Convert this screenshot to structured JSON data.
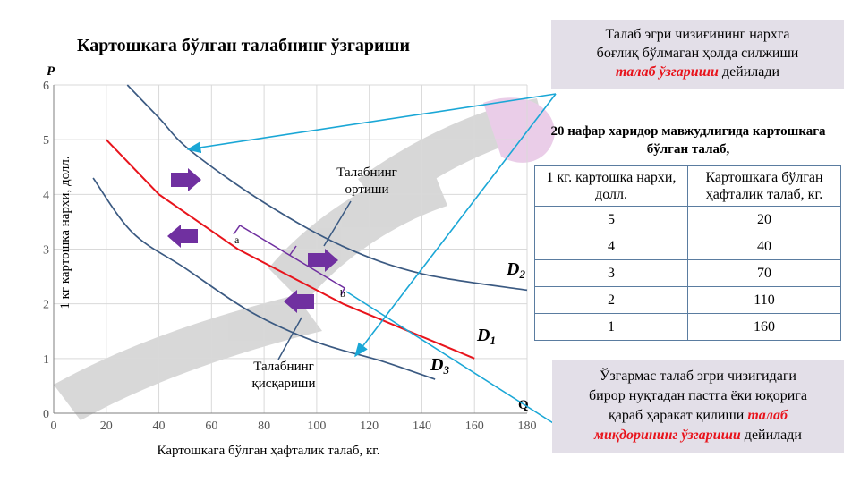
{
  "title": "Картошкага бўлган талабнинг ўзгариши",
  "box_top": {
    "line1": "Талаб эгри чизиғининг нархга",
    "line2": "боғлиқ бўлмаган ҳолда силжиши",
    "highlight": "талаб ўзгариши",
    "tail": " дейилади"
  },
  "box_bottom": {
    "line1": "Ўзгармас талаб эгри чизиғидаги",
    "line2": "бирор нуқтадан пастга ёки юқорига",
    "line3_plain": "қараб ҳаракат қилиши ",
    "line3_highlight": "талаб",
    "highlight2": "миқдорининг ўзгариши",
    "tail": " дейилади"
  },
  "table": {
    "title": "20 нафар харидор мавжудлигида картошкага бўлган талаб,",
    "headers": [
      "1 кг. картошка нархи, долл.",
      "Картошкага бўлган ҳафталик талаб, кг."
    ],
    "rows": [
      [
        "5",
        "20"
      ],
      [
        "4",
        "40"
      ],
      [
        "3",
        "70"
      ],
      [
        "2",
        "110"
      ],
      [
        "1",
        "160"
      ]
    ]
  },
  "chart_data": {
    "type": "line",
    "xlabel": "Картошкага бўлган ҳафталик талаб, кг.",
    "ylabel": "1 кг картошка нархи, долл.",
    "x_axis_letter": "Q",
    "y_axis_letter": "P",
    "xlim": [
      0,
      180
    ],
    "ylim": [
      0,
      6
    ],
    "x_ticks": [
      "0",
      "20",
      "40",
      "60",
      "80",
      "100",
      "120",
      "140",
      "160",
      "180"
    ],
    "y_ticks": [
      "0",
      "1",
      "2",
      "3",
      "4",
      "5",
      "6"
    ],
    "grid": true,
    "series": [
      {
        "name": "D1",
        "color": "#e8141c",
        "points": [
          [
            20,
            5
          ],
          [
            40,
            4
          ],
          [
            70,
            3
          ],
          [
            110,
            2
          ],
          [
            160,
            1
          ]
        ]
      },
      {
        "name": "D2",
        "color": "#3b5a82",
        "points": [
          [
            28,
            6
          ],
          [
            40,
            5.4
          ],
          [
            52,
            4.8
          ],
          [
            80,
            3.85
          ],
          [
            110,
            3.05
          ],
          [
            140,
            2.55
          ],
          [
            180,
            2.25
          ]
        ]
      },
      {
        "name": "D3",
        "color": "#3b5a82",
        "points": [
          [
            15,
            4.3
          ],
          [
            30,
            3.3
          ],
          [
            50,
            2.65
          ],
          [
            75,
            1.85
          ],
          [
            100,
            1.3
          ],
          [
            125,
            0.95
          ],
          [
            145,
            0.62
          ]
        ]
      }
    ],
    "annotations": [
      {
        "text": "Талабнинг ортиши"
      },
      {
        "text": "Талабнинг қисқариши"
      },
      {
        "text": "a"
      },
      {
        "text": "b"
      }
    ],
    "arrow_color": "#7030a0",
    "connector_color": "#1aa7d6"
  }
}
